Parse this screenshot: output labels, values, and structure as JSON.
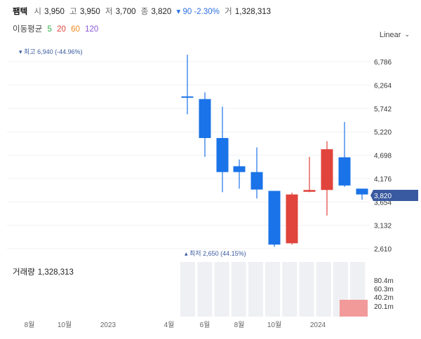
{
  "header": {
    "name": "팸텍",
    "open_label": "시",
    "open": "3,950",
    "high_label": "고",
    "high": "3,950",
    "low_label": "저",
    "low": "3,700",
    "close_label": "종",
    "close": "3,820",
    "change": "▾ 90 -2.30%",
    "volume_label": "거",
    "volume": "1,328,313"
  },
  "moving_average": {
    "title": "이동평균",
    "periods": [
      {
        "label": "5",
        "color": "#2db14a"
      },
      {
        "label": "20",
        "color": "#e0443c"
      },
      {
        "label": "60",
        "color": "#f08a24"
      },
      {
        "label": "120",
        "color": "#8a57d8"
      }
    ]
  },
  "scale_button": {
    "label": "Linear",
    "icon": "chevron-down-icon"
  },
  "annotations": {
    "max": "▾ 최고 6,940 (-44.96%)",
    "min": "▴ 최저 2,650 (44.15%)"
  },
  "current_price_tag": "3,820",
  "volume_panel": {
    "title": "거래량",
    "value": "1,328,313",
    "axis_labels": [
      "80.4m",
      "60.3m",
      "40.2m",
      "20.1m"
    ]
  },
  "colors": {
    "up": "#e0443c",
    "down": "#1a73e8",
    "price_tag": "#3a5aa0",
    "volume_bar": "#eff0f3",
    "volume_current": "#f29a9a"
  },
  "chart_data": {
    "type": "candlestick",
    "y_tick_labels": [
      "6,786",
      "6,264",
      "5,742",
      "5,220",
      "4,698",
      "4,176",
      "3,654",
      "3,132",
      "2,610"
    ],
    "y_ticks": [
      6786,
      6264,
      5742,
      5220,
      4698,
      4176,
      3654,
      3132,
      2610
    ],
    "ylim": [
      2610,
      6786
    ],
    "x_tick_labels": [
      "8월",
      "10월",
      "2023",
      "4월",
      "6월",
      "8월",
      "10월",
      "2024"
    ],
    "candles": [
      {
        "open": 6010,
        "high": 6940,
        "low": 5610,
        "close": 5990
      },
      {
        "open": 5950,
        "high": 6100,
        "low": 4660,
        "close": 5080
      },
      {
        "open": 5080,
        "high": 5780,
        "low": 3870,
        "close": 4320
      },
      {
        "open": 4450,
        "high": 4600,
        "low": 3950,
        "close": 4320
      },
      {
        "open": 4320,
        "high": 4870,
        "low": 3730,
        "close": 3930
      },
      {
        "open": 3900,
        "high": 3900,
        "low": 2650,
        "close": 2700
      },
      {
        "open": 2730,
        "high": 3860,
        "low": 2700,
        "close": 3820
      },
      {
        "open": 3880,
        "high": 4660,
        "low": 3870,
        "close": 3920
      },
      {
        "open": 3920,
        "high": 5010,
        "low": 3350,
        "close": 4830
      },
      {
        "open": 4650,
        "high": 5440,
        "low": 3990,
        "close": 4020
      },
      {
        "open": 3950,
        "high": 3950,
        "low": 3700,
        "close": 3820
      }
    ]
  }
}
